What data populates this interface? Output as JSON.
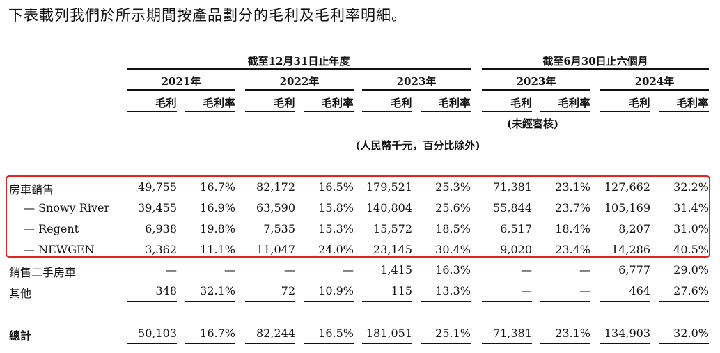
{
  "intro": "下表載列我們於所示期間按產品劃分的毛利及毛利率明細。",
  "headers": {
    "full_year": "截至12月31日止年度",
    "six_months": "截至6月30日止六個月",
    "years": [
      "2021年",
      "2022年",
      "2023年",
      "2023年",
      "2024年"
    ],
    "gross_profit": "毛利",
    "gross_margin": "毛利率",
    "unaudited": "(未經審核)",
    "unit": "(人民幣千元，百分比除外)"
  },
  "rows": [
    {
      "label": "房車銷售",
      "values": [
        "49,755",
        "16.7%",
        "82,172",
        "16.5%",
        "179,521",
        "25.3%",
        "71,381",
        "23.1%",
        "127,662",
        "32.2%"
      ]
    },
    {
      "label": "— Snowy River",
      "values": [
        "39,455",
        "16.9%",
        "63,590",
        "15.8%",
        "140,804",
        "25.6%",
        "55,844",
        "23.7%",
        "105,169",
        "31.4%"
      ]
    },
    {
      "label": "— Regent",
      "values": [
        "6,938",
        "19.8%",
        "7,535",
        "15.3%",
        "15,572",
        "18.5%",
        "6,517",
        "18.4%",
        "8,207",
        "31.0%"
      ]
    },
    {
      "label": "— NEWGEN",
      "values": [
        "3,362",
        "11.1%",
        "11,047",
        "24.0%",
        "23,145",
        "30.4%",
        "9,020",
        "23.4%",
        "14,286",
        "40.5%"
      ]
    },
    {
      "label": "銷售二手房車",
      "values": [
        "—",
        "—",
        "—",
        "—",
        "1,415",
        "16.3%",
        "—",
        "—",
        "6,777",
        "29.0%"
      ]
    },
    {
      "label": "其他",
      "values": [
        "348",
        "32.1%",
        "72",
        "10.9%",
        "115",
        "13.3%",
        "—",
        "—",
        "464",
        "27.6%"
      ]
    }
  ],
  "total": {
    "label": "總計",
    "values": [
      "50,103",
      "16.7%",
      "82,244",
      "16.5%",
      "181,051",
      "25.1%",
      "71,381",
      "23.1%",
      "134,903",
      "32.0%"
    ]
  }
}
